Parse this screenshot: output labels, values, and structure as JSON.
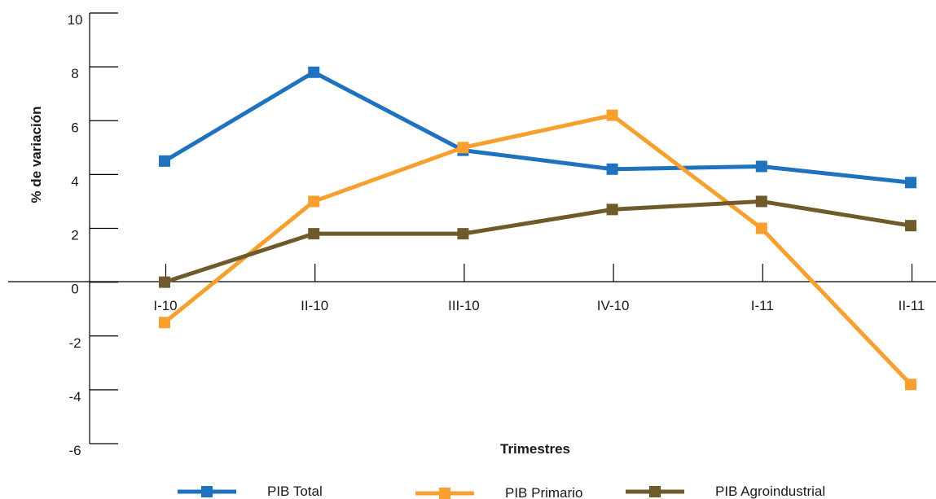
{
  "chart_data": {
    "type": "line",
    "xlabel": "Trimestres",
    "ylabel": "% de variación",
    "categories": [
      "I-10",
      "II-10",
      "III-10",
      "IV-10",
      "I-11",
      "II-11"
    ],
    "ylim": [
      -6,
      10
    ],
    "yticks": [
      "10",
      "8",
      "6",
      "4",
      "2",
      "0",
      "-2",
      "-4",
      "-6"
    ],
    "series": [
      {
        "name": "PIB Total",
        "color": "#1f72bd",
        "values": [
          4.5,
          7.8,
          4.9,
          4.2,
          4.3,
          3.7
        ]
      },
      {
        "name": "PIB Primario",
        "color": "#f7a030",
        "values": [
          -1.5,
          3.0,
          5.0,
          6.2,
          2.0,
          -3.8
        ]
      },
      {
        "name": "PIB Agroindustrial",
        "color": "#6e5a2a",
        "values": [
          0.0,
          1.8,
          1.8,
          2.7,
          3.0,
          2.1
        ]
      }
    ],
    "legend_position": "bottom",
    "grid": false
  }
}
